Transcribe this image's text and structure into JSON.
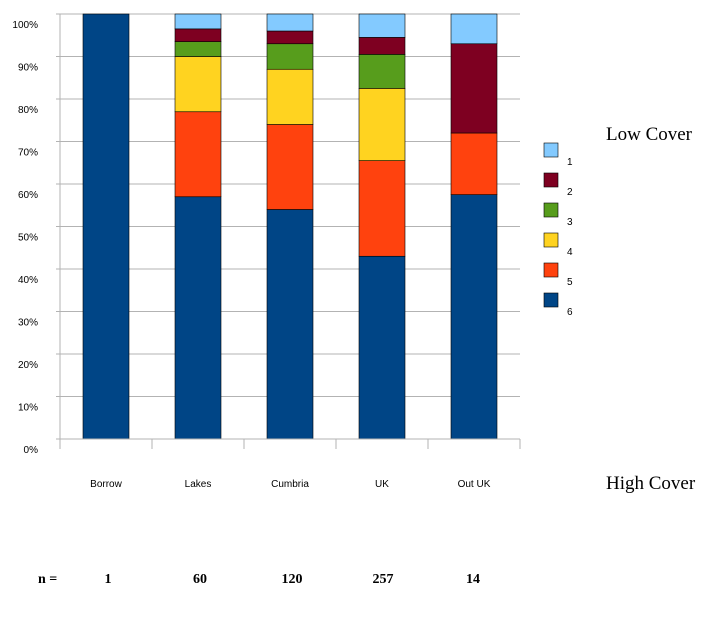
{
  "chart_data": {
    "type": "bar",
    "stacked": true,
    "percent": true,
    "categories": [
      "Borrow",
      "Lakes",
      "Cumbria",
      "UK",
      "Out UK"
    ],
    "series": [
      {
        "name": "6",
        "color": "#004586",
        "values": [
          100,
          57,
          54,
          43,
          57.5
        ]
      },
      {
        "name": "5",
        "color": "#ff420e",
        "values": [
          0,
          20,
          20,
          22.5,
          14.5
        ]
      },
      {
        "name": "4",
        "color": "#ffd320",
        "values": [
          0,
          13,
          13,
          17,
          0
        ]
      },
      {
        "name": "3",
        "color": "#579d1c",
        "values": [
          0,
          3.5,
          6,
          8,
          0
        ]
      },
      {
        "name": "2",
        "color": "#7e0021",
        "values": [
          0,
          3,
          3,
          4,
          21
        ]
      },
      {
        "name": "1",
        "color": "#83caff",
        "values": [
          0,
          3.5,
          4,
          5.5,
          7
        ]
      }
    ],
    "ylim": [
      0,
      100
    ],
    "yticks": [
      "0%",
      "10%",
      "20%",
      "30%",
      "40%",
      "50%",
      "60%",
      "70%",
      "80%",
      "90%",
      "100%"
    ],
    "grid": true,
    "legend_position": "right",
    "side_labels": {
      "top": "Low Cover",
      "bottom": "High Cover"
    },
    "n_row": {
      "label": "n =",
      "values": [
        "1",
        "60",
        "120",
        "257",
        "14"
      ]
    }
  }
}
